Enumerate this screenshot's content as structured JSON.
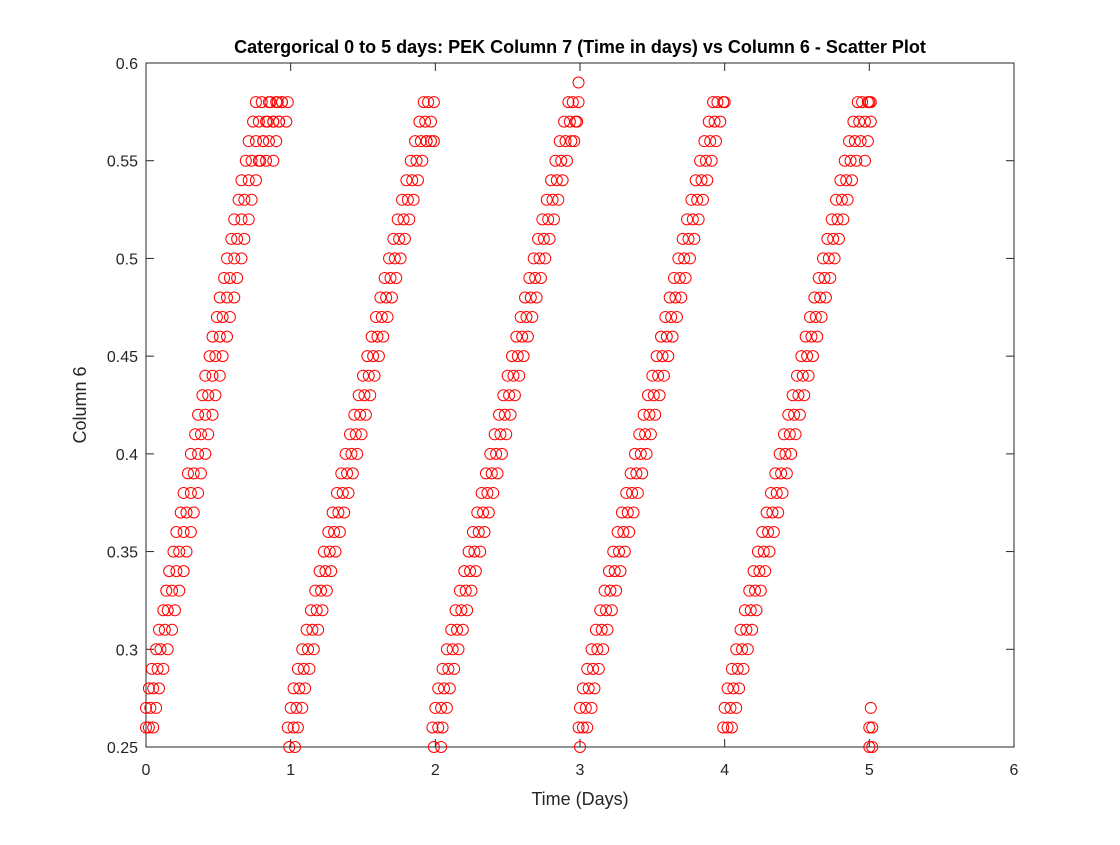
{
  "chart_data": {
    "type": "scatter",
    "title": "Catergorical 0 to 5 days: PEK Column 7 (Time in days) vs Column 6 - Scatter Plot",
    "xlabel": "Time (Days)",
    "ylabel": "Column 6",
    "xlim": [
      0,
      6
    ],
    "ylim": [
      0.25,
      0.6
    ],
    "xticks": [
      "0",
      "1",
      "2",
      "3",
      "4",
      "5",
      "6"
    ],
    "yticks": [
      "0.25",
      "0.3",
      "0.35",
      "0.4",
      "0.45",
      "0.5",
      "0.55",
      "0.6"
    ],
    "grid": false,
    "legend": "none",
    "marker": "open-circle",
    "marker_color": "#ff0000",
    "series": [
      {
        "x": [
          0.0,
          0.02,
          0.05,
          0.0,
          0.03,
          0.07,
          0.02,
          0.05,
          0.09,
          0.04,
          0.08,
          0.12,
          0.07,
          0.1,
          0.15,
          0.09,
          0.13,
          0.18,
          0.12,
          0.15,
          0.2,
          0.14,
          0.18,
          0.23,
          0.16,
          0.21,
          0.26,
          0.19,
          0.23,
          0.28,
          0.21,
          0.26,
          0.31,
          0.24,
          0.28,
          0.33,
          0.26,
          0.31,
          0.36,
          0.29,
          0.33,
          0.38,
          0.31,
          0.36,
          0.41,
          0.34,
          0.38,
          0.43,
          0.36,
          0.41,
          0.46,
          0.39,
          0.43,
          0.48,
          0.41,
          0.46,
          0.51,
          0.44,
          0.48,
          0.53,
          0.46,
          0.51,
          0.56,
          0.49,
          0.53,
          0.58,
          0.51,
          0.56,
          0.61,
          0.54,
          0.58,
          0.63,
          0.56,
          0.61,
          0.66,
          0.59,
          0.63,
          0.68,
          0.61,
          0.66,
          0.71,
          0.64,
          0.68,
          0.73,
          0.66,
          0.71,
          0.76,
          0.69,
          0.73,
          0.78,
          0.71,
          0.76,
          0.81,
          0.74,
          0.78,
          0.83,
          0.76,
          0.8,
          0.85,
          0.79,
          0.83,
          0.88,
          0.81,
          0.85,
          0.9,
          0.84,
          0.88,
          0.92,
          0.86,
          0.9,
          0.94,
          0.88,
          0.92,
          0.97,
          0.91,
          0.94,
          0.98
        ],
        "y": [
          0.26,
          0.26,
          0.26,
          0.27,
          0.27,
          0.27,
          0.28,
          0.28,
          0.28,
          0.29,
          0.29,
          0.29,
          0.3,
          0.3,
          0.3,
          0.31,
          0.31,
          0.31,
          0.32,
          0.32,
          0.32,
          0.33,
          0.33,
          0.33,
          0.34,
          0.34,
          0.34,
          0.35,
          0.35,
          0.35,
          0.36,
          0.36,
          0.36,
          0.37,
          0.37,
          0.37,
          0.38,
          0.38,
          0.38,
          0.39,
          0.39,
          0.39,
          0.4,
          0.4,
          0.4,
          0.41,
          0.41,
          0.41,
          0.42,
          0.42,
          0.42,
          0.43,
          0.43,
          0.43,
          0.44,
          0.44,
          0.44,
          0.45,
          0.45,
          0.45,
          0.46,
          0.46,
          0.46,
          0.47,
          0.47,
          0.47,
          0.48,
          0.48,
          0.48,
          0.49,
          0.49,
          0.49,
          0.5,
          0.5,
          0.5,
          0.51,
          0.51,
          0.51,
          0.52,
          0.52,
          0.52,
          0.53,
          0.53,
          0.53,
          0.54,
          0.54,
          0.54,
          0.55,
          0.55,
          0.55,
          0.56,
          0.56,
          0.56,
          0.57,
          0.57,
          0.57,
          0.58,
          0.58,
          0.58,
          0.55,
          0.55,
          0.55,
          0.56,
          0.56,
          0.56,
          0.57,
          0.57,
          0.57,
          0.58,
          0.58,
          0.58,
          0.57,
          0.57,
          0.57,
          0.58,
          0.58,
          0.58
        ]
      },
      {
        "x": [
          0.98,
          1.02,
          1.05,
          1.0,
          1.04,
          1.08,
          1.02,
          1.06,
          1.1,
          1.05,
          1.09,
          1.13,
          1.08,
          1.12,
          1.16,
          1.11,
          1.15,
          1.19,
          1.14,
          1.18,
          1.22,
          1.17,
          1.21,
          1.25,
          1.2,
          1.24,
          1.28,
          1.23,
          1.27,
          1.31,
          1.26,
          1.3,
          1.34,
          1.29,
          1.33,
          1.37,
          1.32,
          1.36,
          1.4,
          1.35,
          1.39,
          1.43,
          1.38,
          1.42,
          1.46,
          1.41,
          1.45,
          1.49,
          1.44,
          1.48,
          1.52,
          1.47,
          1.51,
          1.55,
          1.5,
          1.54,
          1.58,
          1.53,
          1.57,
          1.61,
          1.56,
          1.6,
          1.64,
          1.59,
          1.63,
          1.67,
          1.62,
          1.66,
          1.7,
          1.65,
          1.69,
          1.73,
          1.68,
          1.72,
          1.76,
          1.71,
          1.75,
          1.79,
          1.74,
          1.78,
          1.82,
          1.77,
          1.81,
          1.85,
          1.8,
          1.84,
          1.88,
          1.83,
          1.87,
          1.91,
          1.86,
          1.9,
          1.94,
          1.89,
          1.93,
          1.97,
          1.92,
          1.95,
          1.99,
          1.94,
          1.97,
          1.99,
          0.99,
          1.03
        ],
        "y": [
          0.26,
          0.26,
          0.26,
          0.27,
          0.27,
          0.27,
          0.28,
          0.28,
          0.28,
          0.29,
          0.29,
          0.29,
          0.3,
          0.3,
          0.3,
          0.31,
          0.31,
          0.31,
          0.32,
          0.32,
          0.32,
          0.33,
          0.33,
          0.33,
          0.34,
          0.34,
          0.34,
          0.35,
          0.35,
          0.35,
          0.36,
          0.36,
          0.36,
          0.37,
          0.37,
          0.37,
          0.38,
          0.38,
          0.38,
          0.39,
          0.39,
          0.39,
          0.4,
          0.4,
          0.4,
          0.41,
          0.41,
          0.41,
          0.42,
          0.42,
          0.42,
          0.43,
          0.43,
          0.43,
          0.44,
          0.44,
          0.44,
          0.45,
          0.45,
          0.45,
          0.46,
          0.46,
          0.46,
          0.47,
          0.47,
          0.47,
          0.48,
          0.48,
          0.48,
          0.49,
          0.49,
          0.49,
          0.5,
          0.5,
          0.5,
          0.51,
          0.51,
          0.51,
          0.52,
          0.52,
          0.52,
          0.53,
          0.53,
          0.53,
          0.54,
          0.54,
          0.54,
          0.55,
          0.55,
          0.55,
          0.56,
          0.56,
          0.56,
          0.57,
          0.57,
          0.57,
          0.58,
          0.58,
          0.58,
          0.56,
          0.56,
          0.56,
          0.25,
          0.25
        ]
      },
      {
        "x": [
          1.98,
          2.02,
          2.05,
          2.0,
          2.04,
          2.08,
          2.02,
          2.06,
          2.1,
          2.05,
          2.09,
          2.13,
          2.08,
          2.12,
          2.16,
          2.11,
          2.15,
          2.19,
          2.14,
          2.18,
          2.22,
          2.17,
          2.21,
          2.25,
          2.2,
          2.24,
          2.28,
          2.23,
          2.27,
          2.31,
          2.26,
          2.3,
          2.34,
          2.29,
          2.33,
          2.37,
          2.32,
          2.36,
          2.4,
          2.35,
          2.39,
          2.43,
          2.38,
          2.42,
          2.46,
          2.41,
          2.45,
          2.49,
          2.44,
          2.48,
          2.52,
          2.47,
          2.51,
          2.55,
          2.5,
          2.54,
          2.58,
          2.53,
          2.57,
          2.61,
          2.56,
          2.6,
          2.64,
          2.59,
          2.63,
          2.67,
          2.62,
          2.66,
          2.7,
          2.65,
          2.69,
          2.73,
          2.68,
          2.72,
          2.76,
          2.71,
          2.75,
          2.79,
          2.74,
          2.78,
          2.82,
          2.77,
          2.81,
          2.85,
          2.8,
          2.84,
          2.88,
          2.83,
          2.87,
          2.91,
          2.86,
          2.9,
          2.94,
          2.89,
          2.93,
          2.97,
          2.92,
          2.95,
          2.99,
          2.96,
          2.98,
          2.99,
          1.99,
          2.04
        ],
        "y": [
          0.26,
          0.26,
          0.26,
          0.27,
          0.27,
          0.27,
          0.28,
          0.28,
          0.28,
          0.29,
          0.29,
          0.29,
          0.3,
          0.3,
          0.3,
          0.31,
          0.31,
          0.31,
          0.32,
          0.32,
          0.32,
          0.33,
          0.33,
          0.33,
          0.34,
          0.34,
          0.34,
          0.35,
          0.35,
          0.35,
          0.36,
          0.36,
          0.36,
          0.37,
          0.37,
          0.37,
          0.38,
          0.38,
          0.38,
          0.39,
          0.39,
          0.39,
          0.4,
          0.4,
          0.4,
          0.41,
          0.41,
          0.41,
          0.42,
          0.42,
          0.42,
          0.43,
          0.43,
          0.43,
          0.44,
          0.44,
          0.44,
          0.45,
          0.45,
          0.45,
          0.46,
          0.46,
          0.46,
          0.47,
          0.47,
          0.47,
          0.48,
          0.48,
          0.48,
          0.49,
          0.49,
          0.49,
          0.5,
          0.5,
          0.5,
          0.51,
          0.51,
          0.51,
          0.52,
          0.52,
          0.52,
          0.53,
          0.53,
          0.53,
          0.54,
          0.54,
          0.54,
          0.55,
          0.55,
          0.55,
          0.56,
          0.56,
          0.56,
          0.57,
          0.57,
          0.57,
          0.58,
          0.58,
          0.58,
          0.56,
          0.57,
          0.59,
          0.25,
          0.25
        ]
      },
      {
        "x": [
          2.99,
          3.02,
          3.05,
          3.0,
          3.04,
          3.08,
          3.02,
          3.06,
          3.1,
          3.05,
          3.09,
          3.13,
          3.08,
          3.12,
          3.16,
          3.11,
          3.15,
          3.19,
          3.14,
          3.18,
          3.22,
          3.17,
          3.21,
          3.25,
          3.2,
          3.24,
          3.28,
          3.23,
          3.27,
          3.31,
          3.26,
          3.3,
          3.34,
          3.29,
          3.33,
          3.37,
          3.32,
          3.36,
          3.4,
          3.35,
          3.39,
          3.43,
          3.38,
          3.42,
          3.46,
          3.41,
          3.45,
          3.49,
          3.44,
          3.48,
          3.52,
          3.47,
          3.51,
          3.55,
          3.5,
          3.54,
          3.58,
          3.53,
          3.57,
          3.61,
          3.56,
          3.6,
          3.64,
          3.59,
          3.63,
          3.67,
          3.62,
          3.66,
          3.7,
          3.65,
          3.69,
          3.73,
          3.68,
          3.72,
          3.76,
          3.71,
          3.75,
          3.79,
          3.74,
          3.78,
          3.82,
          3.77,
          3.81,
          3.85,
          3.8,
          3.84,
          3.88,
          3.83,
          3.87,
          3.91,
          3.86,
          3.9,
          3.94,
          3.89,
          3.93,
          3.97,
          3.92,
          3.95,
          3.99,
          3.0,
          4.0
        ],
        "y": [
          0.26,
          0.26,
          0.26,
          0.27,
          0.27,
          0.27,
          0.28,
          0.28,
          0.28,
          0.29,
          0.29,
          0.29,
          0.3,
          0.3,
          0.3,
          0.31,
          0.31,
          0.31,
          0.32,
          0.32,
          0.32,
          0.33,
          0.33,
          0.33,
          0.34,
          0.34,
          0.34,
          0.35,
          0.35,
          0.35,
          0.36,
          0.36,
          0.36,
          0.37,
          0.37,
          0.37,
          0.38,
          0.38,
          0.38,
          0.39,
          0.39,
          0.39,
          0.4,
          0.4,
          0.4,
          0.41,
          0.41,
          0.41,
          0.42,
          0.42,
          0.42,
          0.43,
          0.43,
          0.43,
          0.44,
          0.44,
          0.44,
          0.45,
          0.45,
          0.45,
          0.46,
          0.46,
          0.46,
          0.47,
          0.47,
          0.47,
          0.48,
          0.48,
          0.48,
          0.49,
          0.49,
          0.49,
          0.5,
          0.5,
          0.5,
          0.51,
          0.51,
          0.51,
          0.52,
          0.52,
          0.52,
          0.53,
          0.53,
          0.53,
          0.54,
          0.54,
          0.54,
          0.55,
          0.55,
          0.55,
          0.56,
          0.56,
          0.56,
          0.57,
          0.57,
          0.57,
          0.58,
          0.58,
          0.58,
          0.25,
          0.58
        ]
      },
      {
        "x": [
          3.99,
          4.02,
          4.05,
          4.0,
          4.04,
          4.08,
          4.02,
          4.06,
          4.1,
          4.05,
          4.09,
          4.13,
          4.08,
          4.12,
          4.16,
          4.11,
          4.15,
          4.19,
          4.14,
          4.18,
          4.22,
          4.17,
          4.21,
          4.25,
          4.2,
          4.24,
          4.28,
          4.23,
          4.27,
          4.31,
          4.26,
          4.3,
          4.34,
          4.29,
          4.33,
          4.37,
          4.32,
          4.36,
          4.4,
          4.35,
          4.39,
          4.43,
          4.38,
          4.42,
          4.46,
          4.41,
          4.45,
          4.49,
          4.44,
          4.48,
          4.52,
          4.47,
          4.51,
          4.55,
          4.5,
          4.54,
          4.58,
          4.53,
          4.57,
          4.61,
          4.56,
          4.6,
          4.64,
          4.59,
          4.63,
          4.67,
          4.62,
          4.66,
          4.7,
          4.65,
          4.69,
          4.73,
          4.68,
          4.72,
          4.76,
          4.71,
          4.75,
          4.79,
          4.74,
          4.78,
          4.82,
          4.77,
          4.81,
          4.85,
          4.8,
          4.84,
          4.88,
          4.83,
          4.87,
          4.91,
          4.86,
          4.9,
          4.94,
          4.89,
          4.93,
          4.97,
          4.92,
          4.95,
          4.99,
          4.97,
          4.99,
          5.01,
          5.0,
          5.01
        ],
        "y": [
          0.26,
          0.26,
          0.26,
          0.27,
          0.27,
          0.27,
          0.28,
          0.28,
          0.28,
          0.29,
          0.29,
          0.29,
          0.3,
          0.3,
          0.3,
          0.31,
          0.31,
          0.31,
          0.32,
          0.32,
          0.32,
          0.33,
          0.33,
          0.33,
          0.34,
          0.34,
          0.34,
          0.35,
          0.35,
          0.35,
          0.36,
          0.36,
          0.36,
          0.37,
          0.37,
          0.37,
          0.38,
          0.38,
          0.38,
          0.39,
          0.39,
          0.39,
          0.4,
          0.4,
          0.4,
          0.41,
          0.41,
          0.41,
          0.42,
          0.42,
          0.42,
          0.43,
          0.43,
          0.43,
          0.44,
          0.44,
          0.44,
          0.45,
          0.45,
          0.45,
          0.46,
          0.46,
          0.46,
          0.47,
          0.47,
          0.47,
          0.48,
          0.48,
          0.48,
          0.49,
          0.49,
          0.49,
          0.5,
          0.5,
          0.5,
          0.51,
          0.51,
          0.51,
          0.52,
          0.52,
          0.52,
          0.53,
          0.53,
          0.53,
          0.54,
          0.54,
          0.54,
          0.55,
          0.55,
          0.55,
          0.56,
          0.56,
          0.56,
          0.57,
          0.57,
          0.57,
          0.58,
          0.58,
          0.58,
          0.55,
          0.56,
          0.57,
          0.58,
          0.58
        ]
      },
      {
        "x": [
          5.0,
          5.02,
          5.01,
          5.0,
          5.02
        ],
        "y": [
          0.25,
          0.26,
          0.27,
          0.26,
          0.25
        ]
      }
    ]
  }
}
